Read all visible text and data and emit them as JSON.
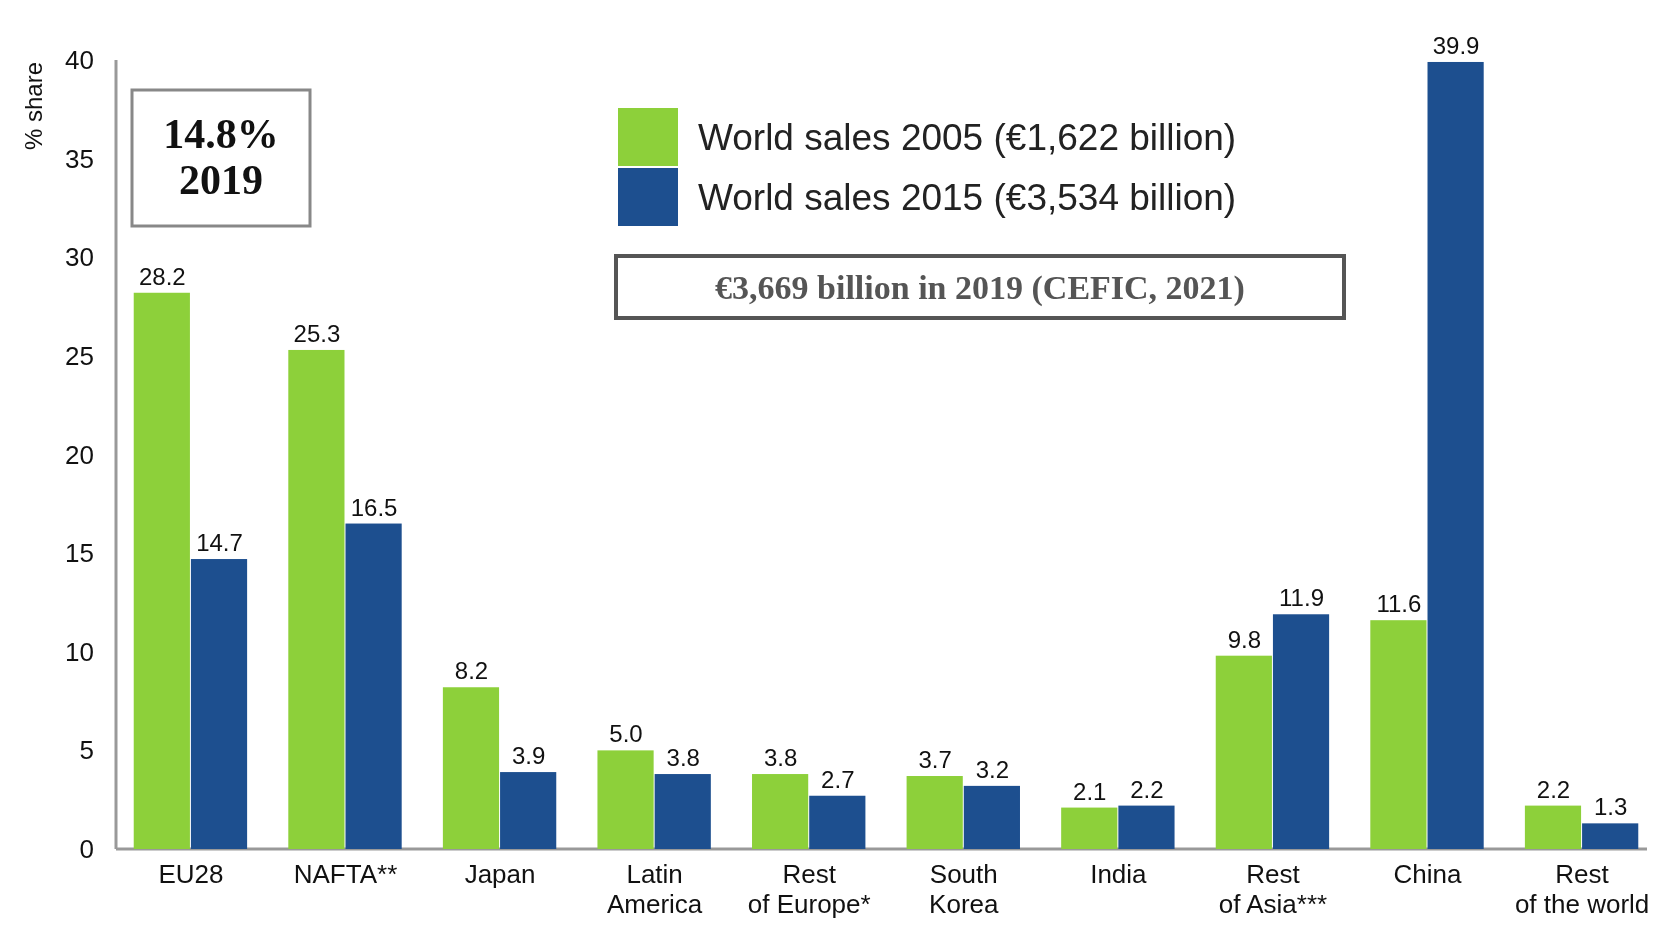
{
  "chart_data": {
    "type": "bar",
    "ylabel": "% share",
    "categories": [
      "EU28",
      "NAFTA**",
      "Japan",
      "Latin America",
      "Rest of Europe*",
      "South Korea",
      "India",
      "Rest of Asia***",
      "China",
      "Rest of the world"
    ],
    "series": [
      {
        "name": "World sales 2005 (€1,622 billion)",
        "color": "#8dd03a",
        "values": [
          28.2,
          25.3,
          8.2,
          5.0,
          3.8,
          3.7,
          2.1,
          9.8,
          11.6,
          2.2
        ],
        "value_labels": [
          "28.2",
          "25.3",
          "8.2",
          "5.0",
          "3.8",
          "3.7",
          "2.1",
          "9.8",
          "11.6",
          "2.2"
        ]
      },
      {
        "name": "World sales 2015 (€3,534 billion)",
        "color": "#1d4f8f",
        "values": [
          14.7,
          16.5,
          3.9,
          3.8,
          2.7,
          3.2,
          2.2,
          11.9,
          39.9,
          1.3
        ],
        "value_labels": [
          "14.7",
          "16.5",
          "3.9",
          "3.8",
          "2.7",
          "3.2",
          "2.2",
          "11.9",
          "39.9",
          "1.3"
        ]
      }
    ],
    "ylim": [
      0,
      40
    ],
    "yticks": [
      0,
      5,
      10,
      15,
      20,
      25,
      30,
      35,
      40
    ],
    "legend": "top",
    "annotations": [
      "14.8%\n2019",
      "€3,669 billion in 2019 (CEFIC, 2021)"
    ]
  }
}
